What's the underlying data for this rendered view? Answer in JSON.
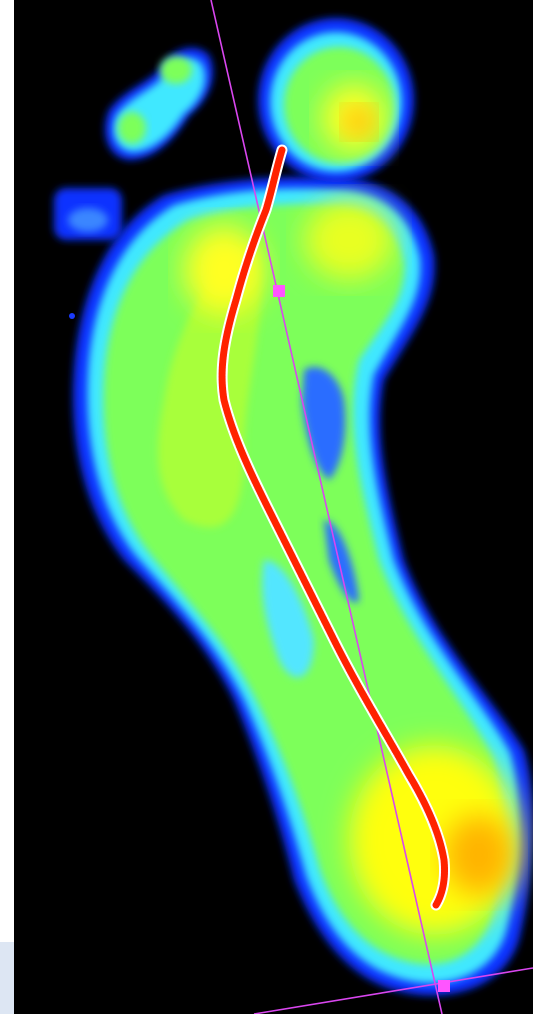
{
  "view": {
    "background_color": "#000000",
    "frame_color": "#ffffff",
    "corner_tab_color": "#dde6f3"
  },
  "pressure_map": {
    "color_scale": [
      "#0000ff",
      "#00ffff",
      "#7fff00",
      "#ffff00",
      "#ff8c00",
      "#ff0000"
    ]
  },
  "overlays": {
    "center_of_pressure_trace": {
      "color": "#ff2200",
      "outline": "#ffffff",
      "visible": true
    },
    "foot_axis_line": {
      "color": "#d946ef",
      "visible": true
    },
    "baseline_line": {
      "color": "#d946ef",
      "visible": true
    },
    "axis_handles": {
      "color": "#ff55ff",
      "count": 2
    }
  }
}
